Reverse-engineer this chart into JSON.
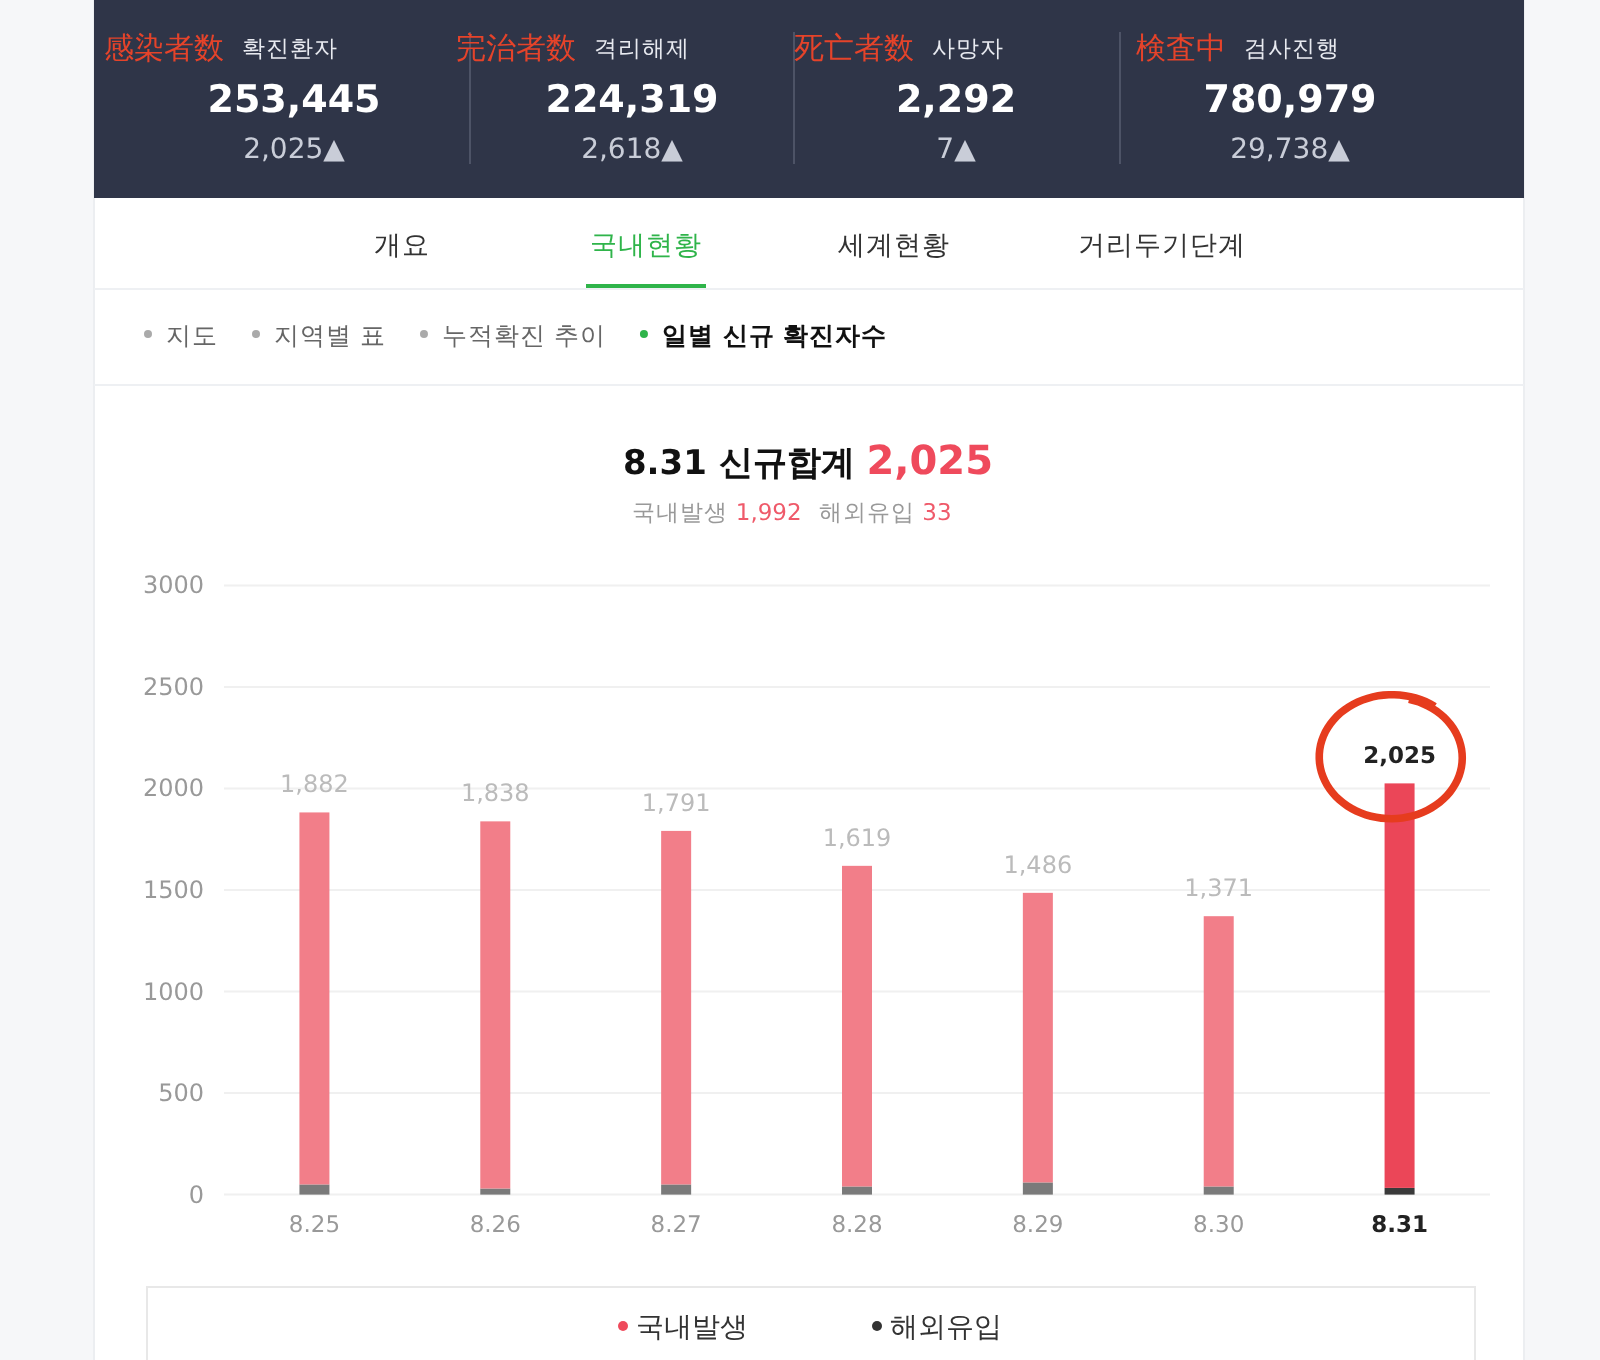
{
  "chart_data": [
    {
      "type": "other",
      "annotations": [
        "感染者数",
        "확진환자",
        "253,445",
        "2,025▲",
        "完治者数",
        "격리해제",
        "224,319",
        "2,618▲",
        "死亡者数",
        "사망자",
        "2,292",
        "7▲",
        "検査中",
        "검사진행",
        "780,979",
        "29,738▲",
        "개요",
        "국내현황",
        "세계현황",
        "거리두기단계",
        "지도",
        "지역별 표",
        "누적확진 추이",
        "일별 신규 확진자수"
      ]
    },
    {
      "type": "bar",
      "title": "8.31 신규합계 2,025",
      "subtitle": "국내발생 1,992 해외유입 33",
      "categories": [
        "8.25",
        "8.26",
        "8.27",
        "8.28",
        "8.29",
        "8.30",
        "8.31"
      ],
      "stacked": true,
      "series": [
        {
          "name": "해외유입",
          "color": "#333333",
          "colors": [
            "#7a7a7a",
            "#7a7a7a",
            "#7a7a7a",
            "#7a7a7a",
            "#7a7a7a",
            "#7a7a7a",
            "#3a3a3a"
          ],
          "values": [
            50,
            30,
            50,
            40,
            60,
            40,
            33
          ]
        },
        {
          "name": "국내발생",
          "color": "#ef4a5c",
          "colors": [
            "#f27e89",
            "#f27e89",
            "#f27e89",
            "#f27e89",
            "#f27e89",
            "#f27e89",
            "#eb4658"
          ],
          "values": [
            1832,
            1808,
            1741,
            1579,
            1426,
            1331,
            1992
          ]
        }
      ],
      "totals": [
        "1,882",
        "1,838",
        "1,791",
        "1,619",
        "1,486",
        "1,371",
        "2,025"
      ],
      "ylim": [
        0,
        3000
      ],
      "yticks": [
        0,
        500,
        1000,
        1500,
        2000,
        2500,
        3000
      ],
      "grid": "y",
      "legend": "bottom"
    }
  ]
}
